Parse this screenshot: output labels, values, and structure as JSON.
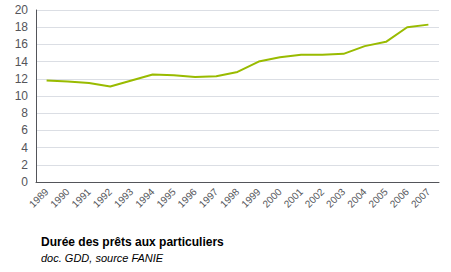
{
  "chart_data": {
    "type": "line",
    "title": "Durée des prêts aux particuliers",
    "subtitle": "doc. GDD, source FANIE",
    "categories": [
      "1989",
      "1990",
      "1991",
      "1992",
      "1993",
      "1994",
      "1995",
      "1996",
      "1997",
      "1998",
      "1999",
      "2000",
      "2001",
      "2002",
      "2003",
      "2004",
      "2005",
      "2006",
      "2007"
    ],
    "values": [
      11.8,
      11.7,
      11.5,
      11.1,
      11.8,
      12.5,
      12.4,
      12.2,
      12.3,
      12.8,
      14.0,
      14.5,
      14.8,
      14.8,
      14.9,
      15.8,
      16.3,
      18.0,
      18.3
    ],
    "color": "#99bb00",
    "ylim": [
      0,
      20
    ],
    "yticks": [
      0,
      2,
      4,
      6,
      8,
      10,
      12,
      14,
      16,
      18,
      20
    ],
    "grid": true
  }
}
